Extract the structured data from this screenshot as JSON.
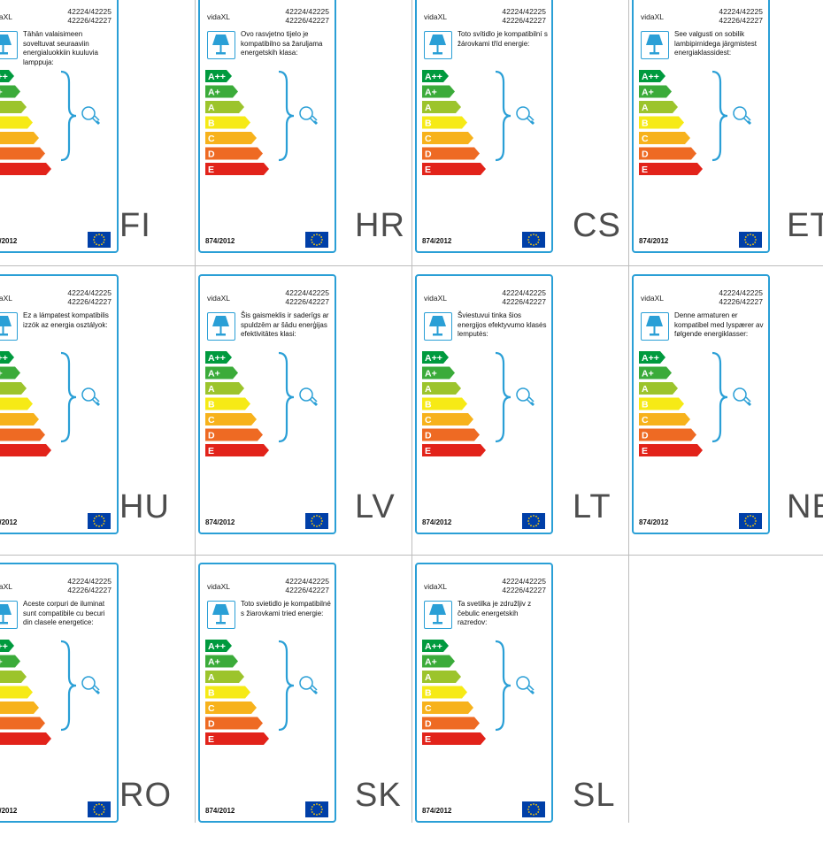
{
  "brand": "vidaXL",
  "codes_line1": "42224/42225",
  "codes_line2": "42226/42227",
  "regulation": "874/2012",
  "colors": {
    "border": "#2a9fd6",
    "country": "#4d4d4d"
  },
  "energy_classes": [
    "A++",
    "A+",
    "A",
    "B",
    "C",
    "D",
    "E"
  ],
  "energy_colors": [
    "#009a3e",
    "#3bab3a",
    "#9cc42c",
    "#f6ea16",
    "#f7b21c",
    "#ee6a23",
    "#e2231a"
  ],
  "cells": [
    {
      "country": "FI",
      "text": "Tähän valaisimeen soveltuvat seuraaviin energialuokkiin kuuluvia lamppuja:"
    },
    {
      "country": "HR",
      "text": "Ovo rasvjetno tijelo je kompatibilno sa žaruljama energetskih klasa:"
    },
    {
      "country": "CS",
      "text": "Toto svítidlo je kompatibilní s žárovkami tříd energie:"
    },
    {
      "country": "ET",
      "text": "See valgusti on sobilik lambipirnidega järgmistest energiaklassidest:"
    },
    {
      "country": "HU",
      "text": "Ez a lámpatest kompatibilis izzók az energia osztályok:"
    },
    {
      "country": "LV",
      "text": "Šis gaismeklis ir saderīgs ar spuldzēm ar šādu enerģijas efektivitātes klasi:"
    },
    {
      "country": "LT",
      "text": "Šviestuvui tinka šios energijos efektyvumo klasės lemputės:"
    },
    {
      "country": "NE",
      "text": "Denne armaturen er kompatibel med lyspærer av følgende energiklasser:"
    },
    {
      "country": "RO",
      "text": "Aceste corpuri de iluminat sunt compatibile cu becuri din clasele energetice:"
    },
    {
      "country": "SK",
      "text": "Toto svietidlo je kompatibilné s žiarovkami tried energie:"
    },
    {
      "country": "SL",
      "text": "Ta svetilka je združljiv z čebulic energetskih razredov:"
    }
  ]
}
